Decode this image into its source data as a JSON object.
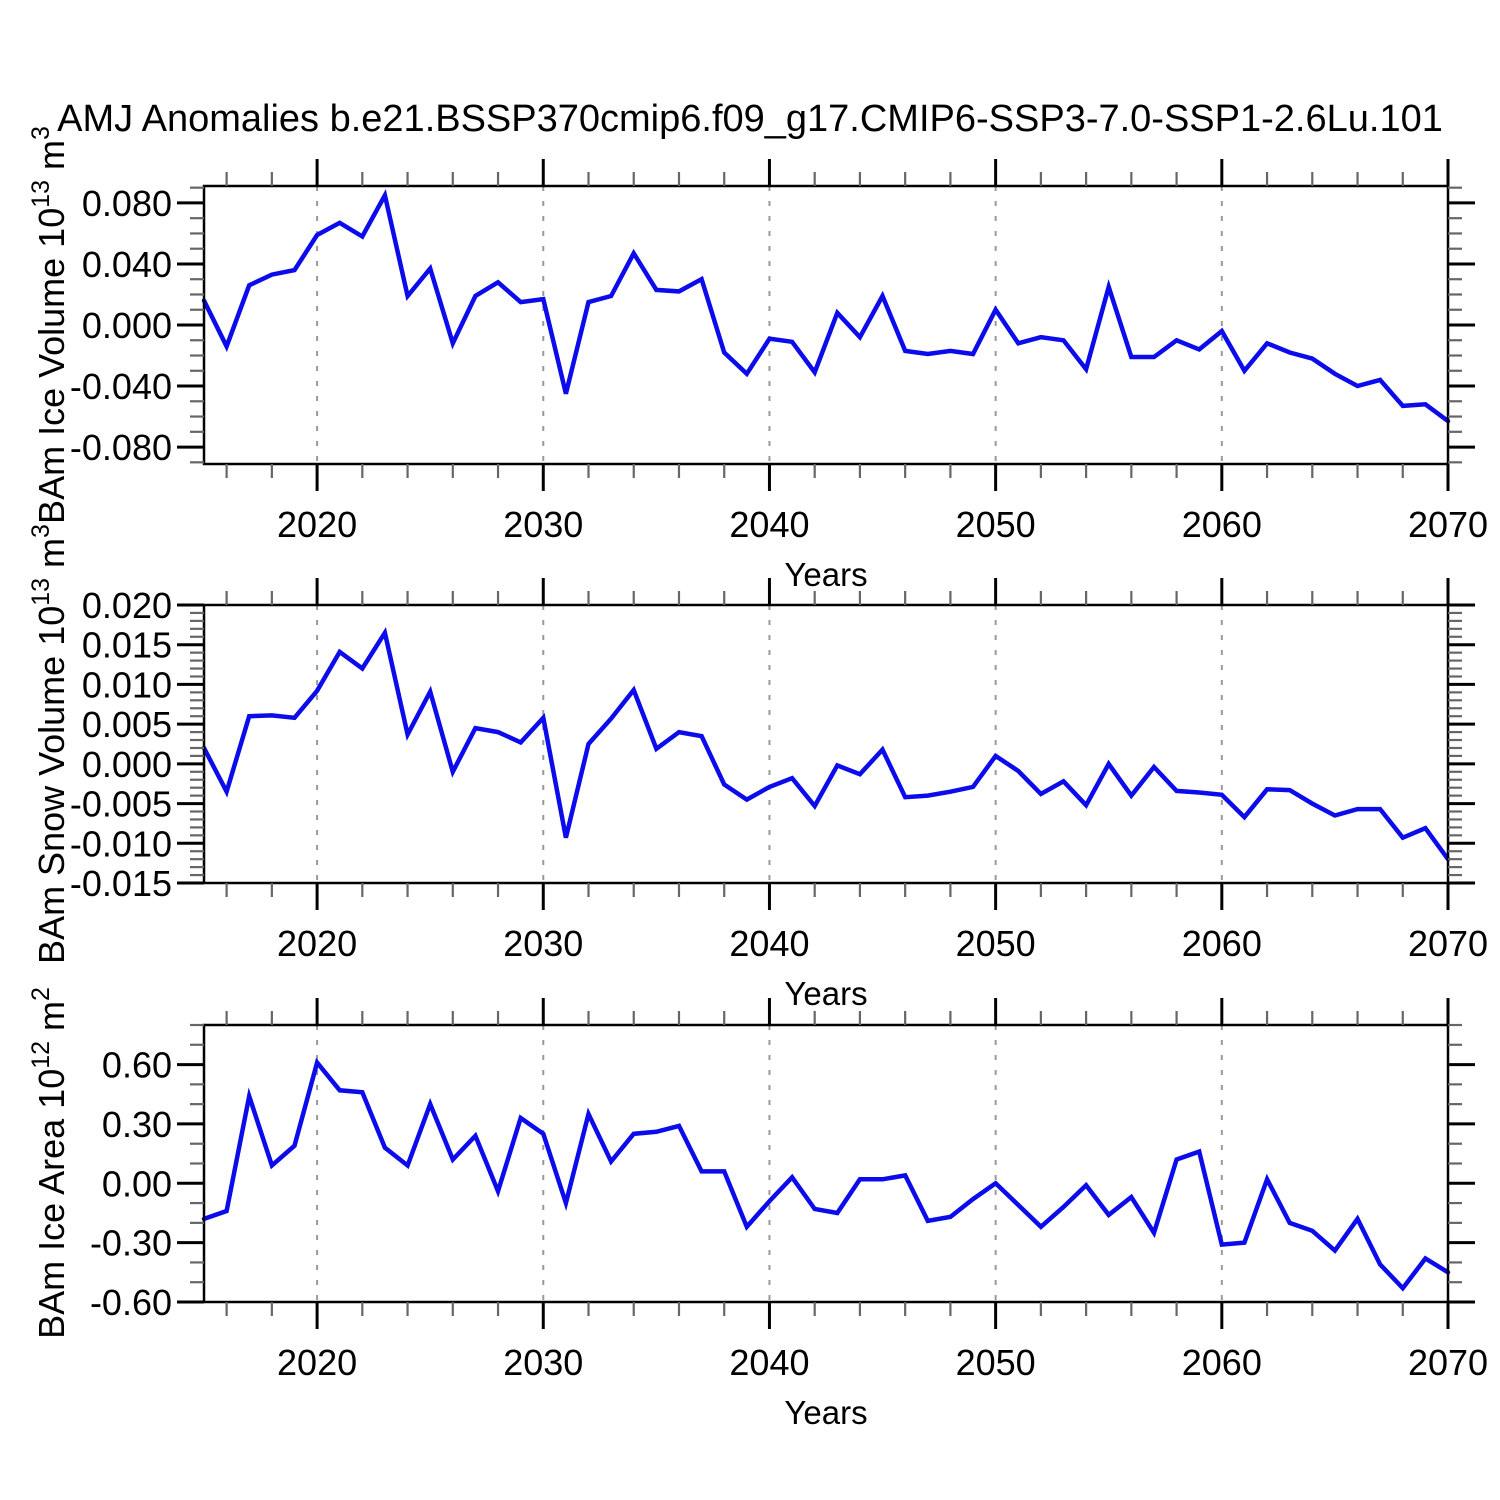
{
  "title": "AMJ Anomalies b.e21.BSSP370cmip6.f09_g17.CMIP6-SSP3-7.0-SSP1-2.6Lu.101",
  "line_color": "#0B0BEB",
  "grid_color": "#999999",
  "xaxis": {
    "label": "Years",
    "tick_years": [
      2020,
      2030,
      2040,
      2050,
      2060,
      2070
    ],
    "tick_labels": [
      "2020",
      "2030",
      "2040",
      "2050",
      "2060",
      "2070"
    ],
    "grid_years": [
      2020,
      2030,
      2040,
      2050,
      2060
    ],
    "range": [
      2015,
      2070
    ],
    "minor_step_years": 2
  },
  "years": [
    2015,
    2016,
    2017,
    2018,
    2019,
    2020,
    2021,
    2022,
    2023,
    2024,
    2025,
    2026,
    2027,
    2028,
    2029,
    2030,
    2031,
    2032,
    2033,
    2034,
    2035,
    2036,
    2037,
    2038,
    2039,
    2040,
    2041,
    2042,
    2043,
    2044,
    2045,
    2046,
    2047,
    2048,
    2049,
    2050,
    2051,
    2052,
    2053,
    2054,
    2055,
    2056,
    2057,
    2058,
    2059,
    2060,
    2061,
    2062,
    2063,
    2064,
    2065,
    2066,
    2067,
    2068,
    2069,
    2070
  ],
  "chart_data": [
    {
      "type": "line",
      "name": "bam-ice-volume",
      "ylabel_text": "BAm Ice Volume 10^13 m^3",
      "ylabel": {
        "prefix": "BAm Ice Volume 10",
        "exp": "13",
        "unit": " m",
        "unit_exp": "3"
      },
      "xlabel": "Years",
      "ylim": [
        -0.0911,
        0.0911
      ],
      "yticks": {
        "labels": [
          "0.080",
          "0.040",
          "0.000",
          "-0.040",
          "-0.080"
        ],
        "values": [
          0.08,
          0.04,
          0.0,
          -0.04,
          -0.08
        ]
      },
      "y_minor_step": 0.01,
      "grid": "vertical-dashed-decades",
      "legend": "none",
      "values": [
        0.016,
        -0.014,
        0.026,
        0.033,
        0.036,
        0.059,
        0.067,
        0.058,
        0.085,
        0.019,
        0.037,
        -0.012,
        0.019,
        0.028,
        0.015,
        0.017,
        -0.045,
        0.015,
        0.019,
        0.047,
        0.023,
        0.022,
        0.03,
        -0.018,
        -0.032,
        -0.009,
        -0.011,
        -0.031,
        0.008,
        -0.008,
        0.019,
        -0.017,
        -0.019,
        -0.017,
        -0.019,
        0.01,
        -0.012,
        -0.008,
        -0.01,
        -0.029,
        0.025,
        -0.021,
        -0.021,
        -0.01,
        -0.016,
        -0.004,
        -0.03,
        -0.012,
        -0.018,
        -0.022,
        -0.032,
        -0.04,
        -0.036,
        -0.053,
        -0.052,
        -0.063
      ]
    },
    {
      "type": "line",
      "name": "bam-snow-volume",
      "ylabel_text": "BAm Snow Volume 10^13 m^3",
      "ylabel": {
        "prefix": "BAm Snow Volume 10",
        "exp": "13",
        "unit": " m",
        "unit_exp": "3"
      },
      "xlabel": "Years",
      "ylim": [
        -0.015,
        0.02
      ],
      "yticks": {
        "labels": [
          "0.020",
          "0.015",
          "0.010",
          "0.005",
          "0.000",
          "-0.005",
          "-0.010",
          "-0.015"
        ],
        "values": [
          0.02,
          0.015,
          0.01,
          0.005,
          0.0,
          -0.005,
          -0.01,
          -0.015
        ]
      },
      "y_minor_step": 0.001,
      "grid": "vertical-dashed-decades",
      "legend": "none",
      "values": [
        0.002,
        -0.0035,
        0.006,
        0.0061,
        0.0058,
        0.0092,
        0.0141,
        0.012,
        0.0165,
        0.0037,
        0.0091,
        -0.001,
        0.0045,
        0.004,
        0.0027,
        0.0058,
        -0.0093,
        0.0025,
        0.0057,
        0.0093,
        0.0019,
        0.004,
        0.0035,
        -0.0026,
        -0.0045,
        -0.0029,
        -0.0018,
        -0.0053,
        -0.0002,
        -0.0013,
        0.0018,
        -0.0042,
        -0.004,
        -0.0035,
        -0.0029,
        0.001,
        -0.0009,
        -0.0038,
        -0.0022,
        -0.0052,
        0.0,
        -0.004,
        -0.0004,
        -0.0034,
        -0.0036,
        -0.0039,
        -0.0067,
        -0.0032,
        -0.0033,
        -0.005,
        -0.0065,
        -0.0057,
        -0.0057,
        -0.0093,
        -0.0081,
        -0.012
      ]
    },
    {
      "type": "line",
      "name": "bam-ice-area",
      "ylabel_text": "BAm Ice Area 10^12 m^2",
      "ylabel": {
        "prefix": "BAm Ice Area 10",
        "exp": "12",
        "unit": " m",
        "unit_exp": "2"
      },
      "xlabel": "Years",
      "ylim": [
        -0.6,
        0.8
      ],
      "yticks": {
        "labels": [
          "0.60",
          "0.30",
          "0.00",
          "-0.30",
          "-0.60"
        ],
        "values": [
          0.6,
          0.3,
          0.0,
          -0.3,
          -0.6
        ]
      },
      "y_minor_step": 0.1,
      "grid": "vertical-dashed-decades",
      "legend": "none",
      "values": [
        -0.18,
        -0.14,
        0.44,
        0.09,
        0.19,
        0.61,
        0.47,
        0.46,
        0.18,
        0.09,
        0.4,
        0.12,
        0.24,
        -0.04,
        0.33,
        0.25,
        -0.1,
        0.35,
        0.11,
        0.25,
        0.26,
        0.29,
        0.06,
        0.06,
        -0.22,
        -0.09,
        0.03,
        -0.13,
        -0.15,
        0.02,
        0.02,
        0.04,
        -0.19,
        -0.17,
        -0.08,
        0.0,
        -0.11,
        -0.22,
        -0.12,
        -0.01,
        -0.16,
        -0.07,
        -0.25,
        0.12,
        0.16,
        -0.31,
        -0.3,
        0.02,
        -0.2,
        -0.24,
        -0.34,
        -0.18,
        -0.41,
        -0.53,
        -0.38,
        -0.45
      ]
    }
  ]
}
